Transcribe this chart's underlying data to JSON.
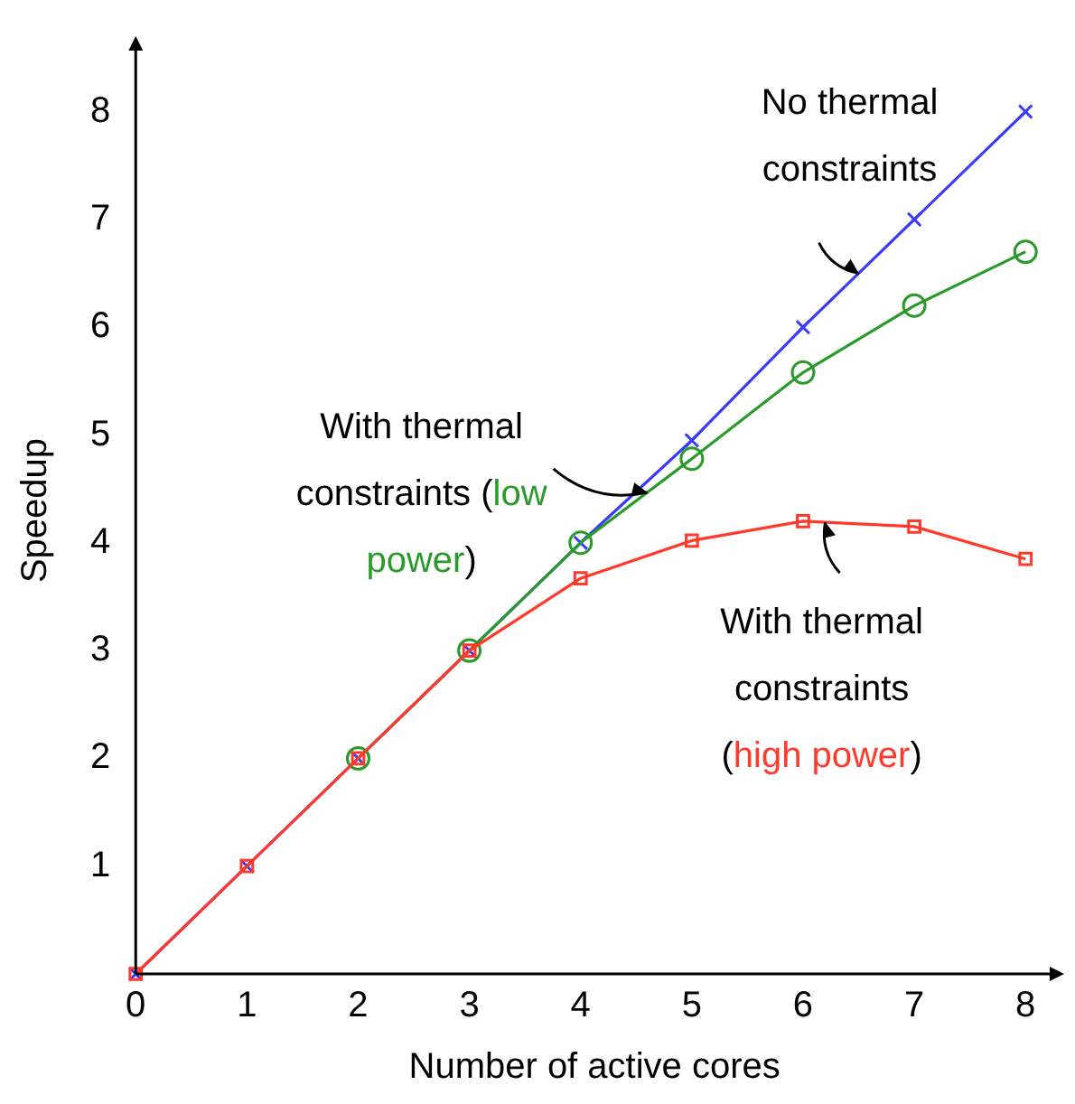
{
  "chart_data": {
    "type": "line",
    "xlabel": "Number of active cores",
    "ylabel": "Speedup",
    "x": [
      0,
      1,
      2,
      3,
      4,
      5,
      6,
      7,
      8
    ],
    "series": [
      {
        "name": "No thermal constraints",
        "color": "#3a3aff",
        "marker": "cross",
        "values": [
          0,
          1,
          2,
          3,
          4,
          4.95,
          6,
          7,
          8
        ]
      },
      {
        "name": "With thermal constraints (low power)",
        "color": "#2a9a2a",
        "marker": "circle",
        "values": [
          null,
          null,
          2,
          3,
          4,
          4.78,
          5.58,
          6.2,
          6.7
        ]
      },
      {
        "name": "With thermal constraints (high power)",
        "color": "#ff3a2a",
        "marker": "square",
        "values": [
          0,
          1,
          2,
          3,
          3.67,
          4.02,
          4.2,
          4.15,
          3.85
        ]
      }
    ],
    "xlim": [
      0,
      8.25
    ],
    "ylim": [
      0,
      8.6
    ],
    "xticks": [
      0,
      1,
      2,
      3,
      4,
      5,
      6,
      7,
      8
    ],
    "yticks": [
      1,
      2,
      3,
      4,
      5,
      6,
      7,
      8
    ],
    "grid": false,
    "legend": false,
    "line_style": "solid"
  }
}
